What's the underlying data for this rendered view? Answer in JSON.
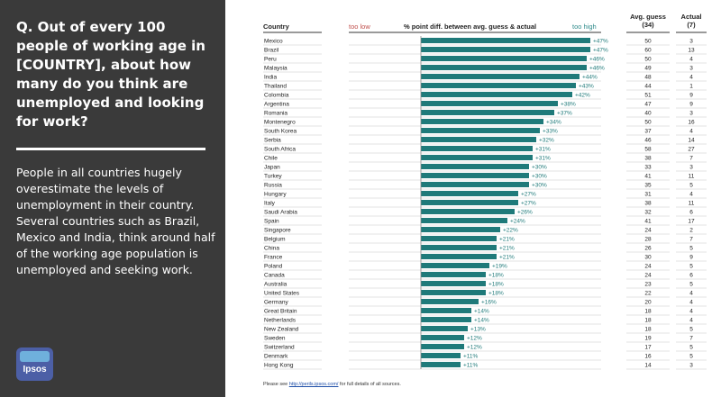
{
  "question": "Q. Out of every 100 people of working age in [COUNTRY], about how many do you think are unemployed and looking for work?",
  "summary": "People in all countries hugely overestimate the levels of unemployment in their country. Several countries such as Brazil, Mexico and India, think around half of the working age population is unemployed and seeking work.",
  "logo_text": "Ipsos",
  "headers": {
    "country": "Country",
    "too_low": "too low",
    "pct_diff": "% point diff. between avg. guess & actual",
    "too_high": "too high",
    "avg_guess": "Avg. guess",
    "avg_guess_n": "(34)",
    "actual": "Actual",
    "actual_n": "(7)"
  },
  "footer": {
    "prefix": "Please see",
    "link": "http://perils.ipsos.com/",
    "suffix": "for full details of all sources."
  },
  "colors": {
    "bar": "#1f7a7a",
    "too_low": "#c0504d",
    "too_high": "#2f8b8b",
    "panel": "#3a3a3a"
  },
  "chart_data": {
    "type": "bar",
    "orientation": "horizontal",
    "title": "% point diff. between avg. guess & actual",
    "categories": [
      "Mexico",
      "Brazil",
      "Peru",
      "Malaysia",
      "India",
      "Thailand",
      "Colombia",
      "Argentina",
      "Romania",
      "Montenegro",
      "South Korea",
      "Serbia",
      "South Africa",
      "Chile",
      "Japan",
      "Turkey",
      "Russia",
      "Hungary",
      "Italy",
      "Saudi Arabia",
      "Spain",
      "Singapore",
      "Belgium",
      "China",
      "France",
      "Poland",
      "Canada",
      "Australia",
      "United States",
      "Germany",
      "Great Britain",
      "Netherlands",
      "New Zealand",
      "Sweden",
      "Switzerland",
      "Denmark",
      "Hong Kong"
    ],
    "values": [
      47,
      47,
      46,
      46,
      44,
      43,
      42,
      38,
      37,
      34,
      33,
      32,
      31,
      31,
      30,
      30,
      30,
      27,
      27,
      26,
      24,
      22,
      21,
      21,
      21,
      19,
      18,
      18,
      18,
      16,
      14,
      14,
      13,
      12,
      12,
      11,
      11
    ],
    "labels": [
      "+47%",
      "+47%",
      "+46%",
      "+46%",
      "+44%",
      "+43%",
      "+42%",
      "+38%",
      "+37%",
      "+34%",
      "+33%",
      "+32%",
      "+31%",
      "+31%",
      "+30%",
      "+30%",
      "+30%",
      "+27%",
      "+27%",
      "+26%",
      "+24%",
      "+22%",
      "+21%",
      "+21%",
      "+21%",
      "+19%",
      "+18%",
      "+18%",
      "+18%",
      "+16%",
      "+14%",
      "+14%",
      "+13%",
      "+12%",
      "+12%",
      "+11%",
      "+11%"
    ],
    "avg_guess": [
      50,
      60,
      50,
      49,
      48,
      44,
      51,
      47,
      40,
      50,
      37,
      46,
      58,
      38,
      33,
      41,
      35,
      31,
      38,
      32,
      41,
      24,
      28,
      26,
      30,
      24,
      24,
      23,
      22,
      20,
      18,
      18,
      18,
      19,
      17,
      16,
      14
    ],
    "actual": [
      3,
      13,
      4,
      3,
      4,
      1,
      9,
      9,
      3,
      16,
      4,
      14,
      27,
      7,
      3,
      11,
      5,
      4,
      11,
      6,
      17,
      2,
      7,
      5,
      9,
      5,
      6,
      5,
      4,
      4,
      4,
      4,
      5,
      7,
      5,
      5,
      3
    ],
    "xlim": [
      -20,
      50
    ],
    "xlabel": "",
    "ylabel": ""
  }
}
